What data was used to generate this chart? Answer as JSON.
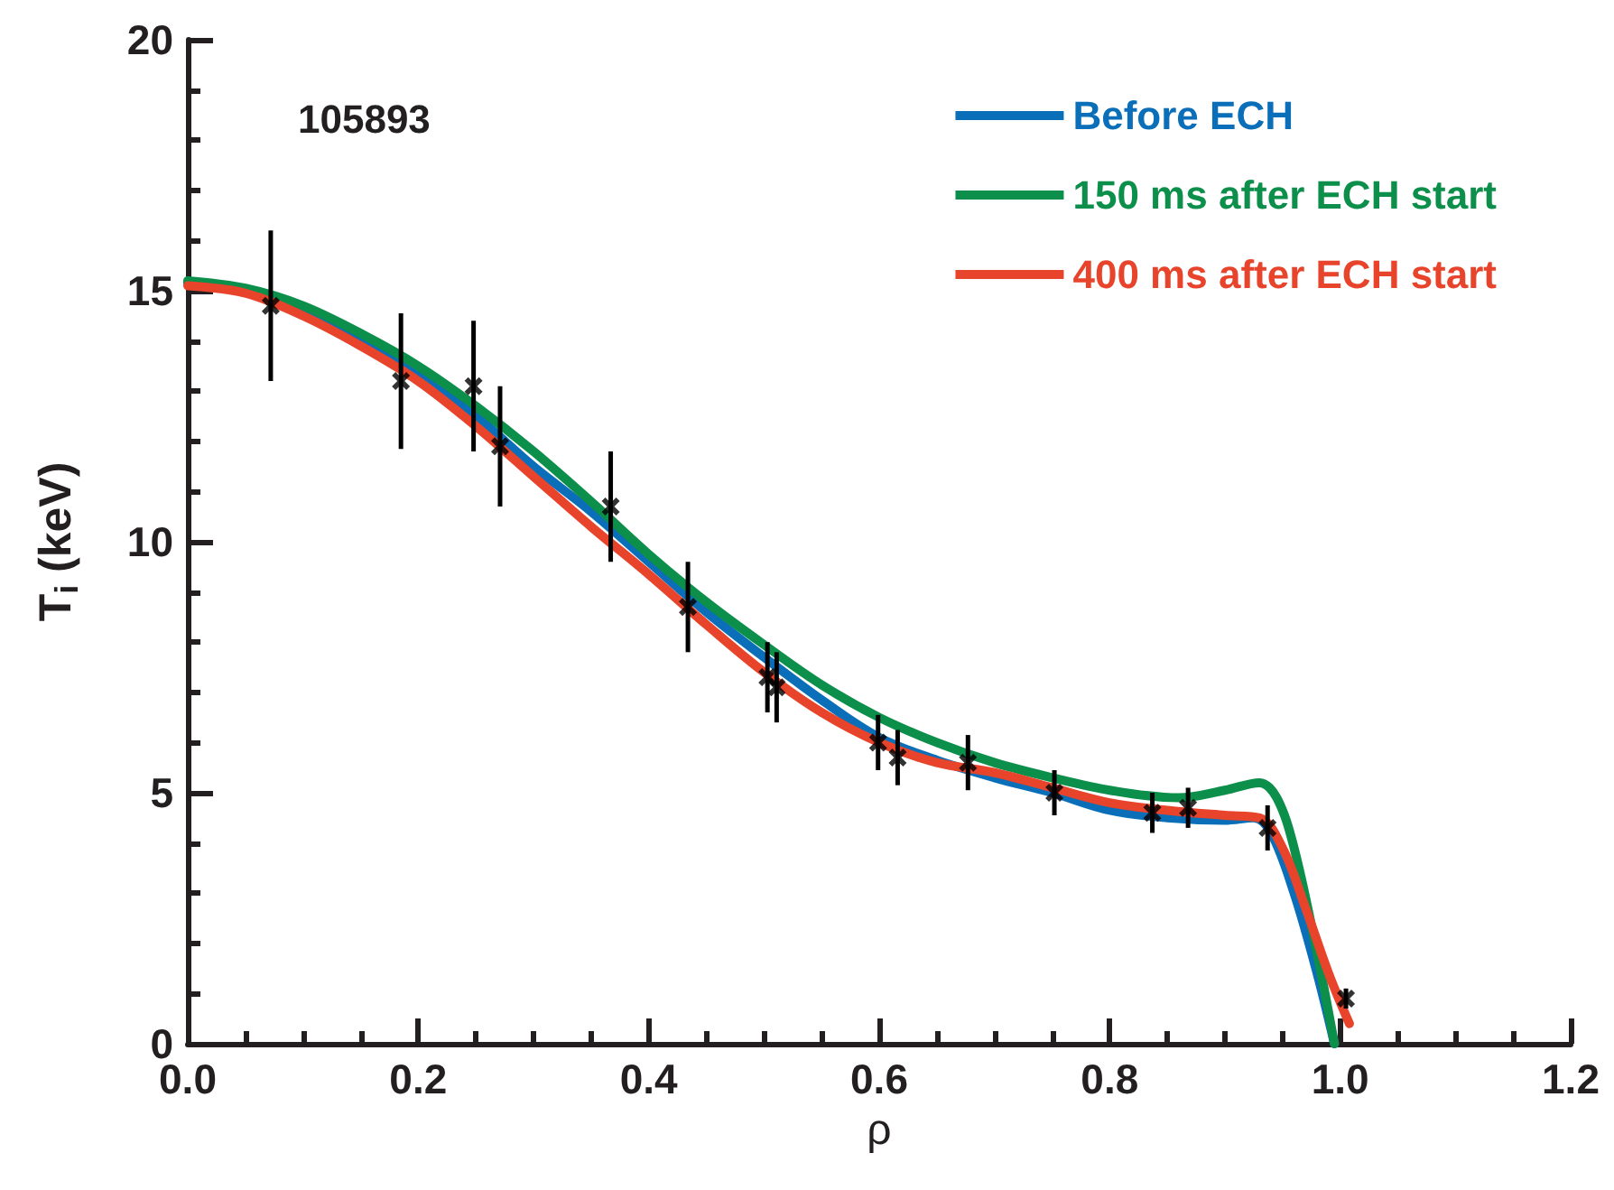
{
  "chart_data": {
    "type": "line",
    "xlabel": "ρ",
    "ylabel": "T$_{i}$ (keV)",
    "annotations": [
      "105893"
    ],
    "xlim": [
      0,
      1.2
    ],
    "xticks": [
      {
        "value": 0,
        "label": "0.0"
      },
      0.2,
      0.4,
      0.6,
      0.8,
      {
        "value": 1,
        "label": "1.0"
      },
      1.2
    ],
    "ylim": [
      0,
      20
    ],
    "yticks": [
      0,
      5,
      10,
      15,
      20
    ],
    "grid": false,
    "legend": "top right",
    "line_style": "solid",
    "series": [
      {
        "name": "Before ECH",
        "color": "#0a6fb8",
        "x": [
          0,
          0.05,
          0.1,
          0.15,
          0.2,
          0.25,
          0.3,
          0.35,
          0.4,
          0.45,
          0.5,
          0.55,
          0.6,
          0.65,
          0.7,
          0.75,
          0.8,
          0.85,
          0.9,
          0.925,
          0.94,
          0.96,
          0.98,
          0.995
        ],
        "values": [
          15.15,
          15.0,
          14.6,
          14.0,
          13.3,
          12.5,
          11.5,
          10.6,
          9.6,
          8.6,
          7.7,
          6.85,
          6.1,
          5.65,
          5.3,
          5.0,
          4.65,
          4.5,
          4.45,
          4.5,
          4.2,
          3.0,
          1.4,
          0
        ]
      },
      {
        "name": "150 ms after ECH start",
        "color": "#0c8f4a",
        "x": [
          0,
          0.05,
          0.1,
          0.15,
          0.2,
          0.25,
          0.3,
          0.35,
          0.4,
          0.45,
          0.5,
          0.55,
          0.6,
          0.65,
          0.7,
          0.75,
          0.8,
          0.86,
          0.9,
          0.93,
          0.945,
          0.96,
          0.98,
          0.995
        ],
        "values": [
          15.2,
          15.05,
          14.7,
          14.15,
          13.5,
          12.7,
          11.8,
          10.8,
          9.75,
          8.8,
          7.95,
          7.15,
          6.5,
          6.0,
          5.6,
          5.3,
          5.05,
          4.9,
          5.05,
          5.2,
          4.9,
          3.9,
          1.8,
          0
        ]
      },
      {
        "name": "400 ms after ECH start",
        "color": "#e8442b",
        "x": [
          0,
          0.05,
          0.1,
          0.15,
          0.2,
          0.25,
          0.3,
          0.35,
          0.4,
          0.45,
          0.5,
          0.55,
          0.6,
          0.65,
          0.7,
          0.75,
          0.8,
          0.85,
          0.9,
          0.93,
          0.95,
          0.97,
          0.99,
          1.008
        ],
        "values": [
          15.1,
          14.95,
          14.5,
          13.9,
          13.2,
          12.3,
          11.3,
          10.3,
          9.35,
          8.35,
          7.4,
          6.6,
          6.0,
          5.6,
          5.4,
          5.1,
          4.8,
          4.65,
          4.55,
          4.5,
          3.9,
          2.7,
          1.4,
          0.4
        ]
      },
      {
        "type": "scatter",
        "marker": "cross",
        "color": "#000000",
        "x": [
          0.072,
          0.185,
          0.248,
          0.271,
          0.367,
          0.434,
          0.503,
          0.511,
          0.599,
          0.616,
          0.677,
          0.752,
          0.837,
          0.868,
          0.937,
          1.005
        ],
        "values": [
          14.7,
          13.2,
          13.1,
          11.9,
          10.7,
          8.7,
          7.3,
          7.1,
          6.0,
          5.7,
          5.6,
          5.0,
          4.6,
          4.7,
          4.3,
          0.9
        ],
        "errors": [
          1.5,
          1.35,
          1.3,
          1.2,
          1.1,
          0.9,
          0.7,
          0.7,
          0.55,
          0.55,
          0.55,
          0.45,
          0.4,
          0.4,
          0.45,
          0.2
        ]
      }
    ]
  }
}
